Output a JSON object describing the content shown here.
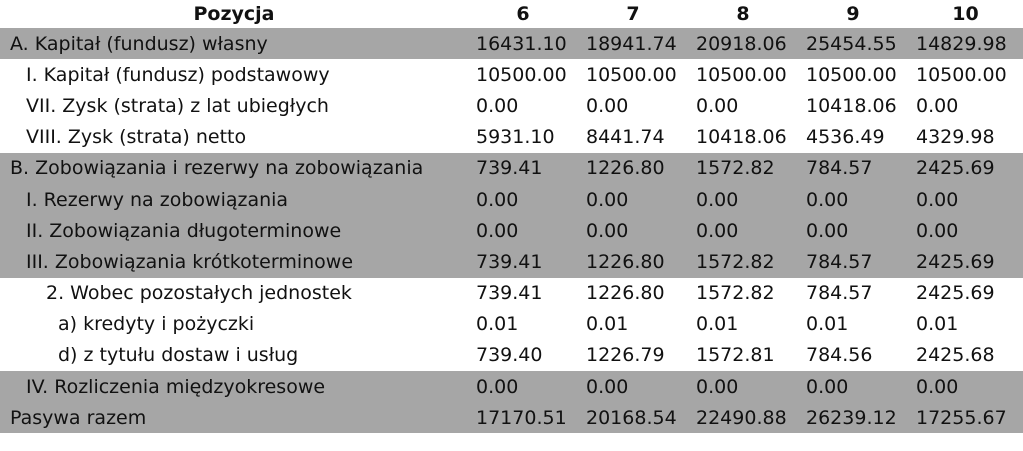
{
  "table": {
    "header": {
      "label": "Pozycja",
      "columns": [
        "6",
        "7",
        "8",
        "9",
        "10"
      ]
    },
    "rows": [
      {
        "label": "A. Kapitał (fundusz) własny",
        "values": [
          "16431.10",
          "18941.74",
          "20918.06",
          "25454.55",
          "14829.98"
        ],
        "shaded": true,
        "indent": 0
      },
      {
        "label": "I. Kapitał (fundusz) podstawowy",
        "values": [
          "10500.00",
          "10500.00",
          "10500.00",
          "10500.00",
          "10500.00"
        ],
        "shaded": false,
        "indent": 1
      },
      {
        "label": "VII. Zysk (strata) z lat ubiegłych",
        "values": [
          "0.00",
          "0.00",
          "0.00",
          "10418.06",
          "0.00"
        ],
        "shaded": false,
        "indent": 1
      },
      {
        "label": "VIII. Zysk (strata) netto",
        "values": [
          "5931.10",
          "8441.74",
          "10418.06",
          "4536.49",
          "4329.98"
        ],
        "shaded": false,
        "indent": 1
      },
      {
        "label": "B. Zobowiązania i rezerwy na zobowiązania",
        "values": [
          "739.41",
          "1226.80",
          "1572.82",
          "784.57",
          "2425.69"
        ],
        "shaded": true,
        "indent": 0
      },
      {
        "label": "I. Rezerwy na zobowiązania",
        "values": [
          "0.00",
          "0.00",
          "0.00",
          "0.00",
          "0.00"
        ],
        "shaded": true,
        "indent": 1
      },
      {
        "label": "II. Zobowiązania długoterminowe",
        "values": [
          "0.00",
          "0.00",
          "0.00",
          "0.00",
          "0.00"
        ],
        "shaded": true,
        "indent": 1
      },
      {
        "label": "III. Zobowiązania krótkoterminowe",
        "values": [
          "739.41",
          "1226.80",
          "1572.82",
          "784.57",
          "2425.69"
        ],
        "shaded": true,
        "indent": 1
      },
      {
        "label": "2. Wobec pozostałych jednostek",
        "values": [
          "739.41",
          "1226.80",
          "1572.82",
          "784.57",
          "2425.69"
        ],
        "shaded": false,
        "indent": 2
      },
      {
        "label": "a) kredyty i pożyczki",
        "values": [
          "0.01",
          "0.01",
          "0.01",
          "0.01",
          "0.01"
        ],
        "shaded": false,
        "indent": 3
      },
      {
        "label": "d) z tytułu dostaw i usług",
        "values": [
          "739.40",
          "1226.79",
          "1572.81",
          "784.56",
          "2425.68"
        ],
        "shaded": false,
        "indent": 3
      },
      {
        "label": "IV. Rozliczenia międzyokresowe",
        "values": [
          "0.00",
          "0.00",
          "0.00",
          "0.00",
          "0.00"
        ],
        "shaded": true,
        "indent": 1
      },
      {
        "label": "Pasywa razem",
        "values": [
          "17170.51",
          "20168.54",
          "22490.88",
          "26239.12",
          "17255.67"
        ],
        "shaded": true,
        "indent": 0
      }
    ],
    "colors": {
      "shaded_row": "#a6a6a6",
      "background": "#ffffff",
      "text": "#111111"
    }
  }
}
